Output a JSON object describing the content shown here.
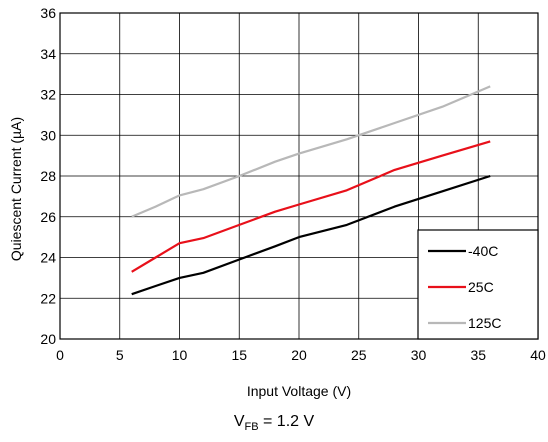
{
  "chart_data": {
    "type": "line",
    "title": "",
    "xlabel": "Input Voltage (V)",
    "ylabel": "Quiescent Current (µA)",
    "xlim": [
      0,
      40
    ],
    "ylim": [
      20,
      36
    ],
    "xticks": [
      "0",
      "5",
      "10",
      "15",
      "20",
      "25",
      "30",
      "35",
      "40"
    ],
    "yticks": [
      "20",
      "22",
      "24",
      "26",
      "28",
      "30",
      "32",
      "34",
      "36"
    ],
    "grid": true,
    "legend_position": "bottom-right",
    "series": [
      {
        "name": "-40C",
        "color": "#000000",
        "x": [
          6,
          8,
          10,
          12,
          15,
          18,
          20,
          24,
          28,
          32,
          36
        ],
        "y": [
          22.2,
          22.6,
          23.0,
          23.25,
          23.9,
          24.55,
          25.0,
          25.6,
          26.5,
          27.25,
          28.0
        ]
      },
      {
        "name": "25C",
        "color": "#e8101a",
        "x": [
          6,
          8,
          10,
          12,
          15,
          18,
          20,
          24,
          28,
          32,
          36
        ],
        "y": [
          23.3,
          24.0,
          24.7,
          24.95,
          25.6,
          26.25,
          26.6,
          27.3,
          28.3,
          29.0,
          29.7
        ]
      },
      {
        "name": "125C",
        "color": "#b8b8b8",
        "x": [
          6,
          8,
          10,
          12,
          15,
          18,
          20,
          24,
          28,
          32,
          36
        ],
        "y": [
          26.0,
          26.5,
          27.05,
          27.35,
          28.0,
          28.7,
          29.1,
          29.8,
          30.6,
          31.4,
          32.4
        ]
      }
    ]
  },
  "note": {
    "v": "V",
    "sub": "FB",
    "rest": " = 1.2 V"
  }
}
